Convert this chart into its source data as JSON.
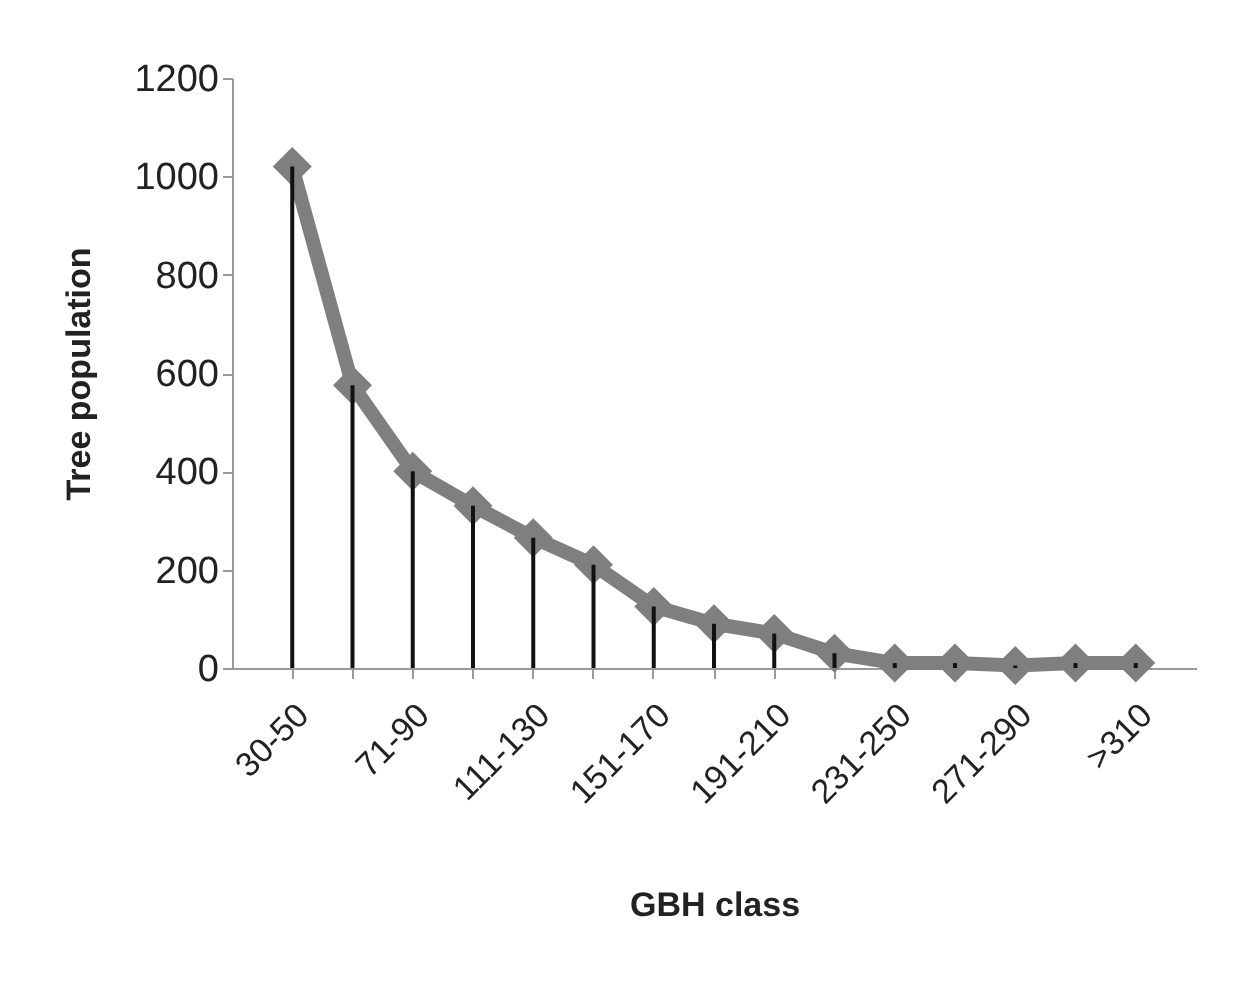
{
  "chart_data": {
    "type": "line",
    "xlabel": "GBH class",
    "ylabel": "Tree population",
    "categories": [
      "30-50",
      null,
      "71-90",
      null,
      "111-130",
      null,
      "151-170",
      null,
      "191-210",
      null,
      "231-250",
      null,
      "271-290",
      null,
      ">310"
    ],
    "series": [
      {
        "color": "#7f7f7f",
        "marker": "diamond",
        "values": [
          1020,
          575,
          400,
          330,
          265,
          210,
          125,
          90,
          70,
          30,
          10,
          10,
          5,
          10,
          10
        ]
      },
      {
        "type": "bar",
        "color": "#111111",
        "values": [
          1020,
          575,
          400,
          330,
          265,
          210,
          125,
          90,
          70,
          30,
          10,
          10,
          5,
          10,
          10
        ]
      }
    ],
    "ylim": [
      0,
      1200
    ],
    "yticks": [
      0,
      200,
      400,
      600,
      800,
      1000,
      1200
    ],
    "line_style": "solid"
  }
}
